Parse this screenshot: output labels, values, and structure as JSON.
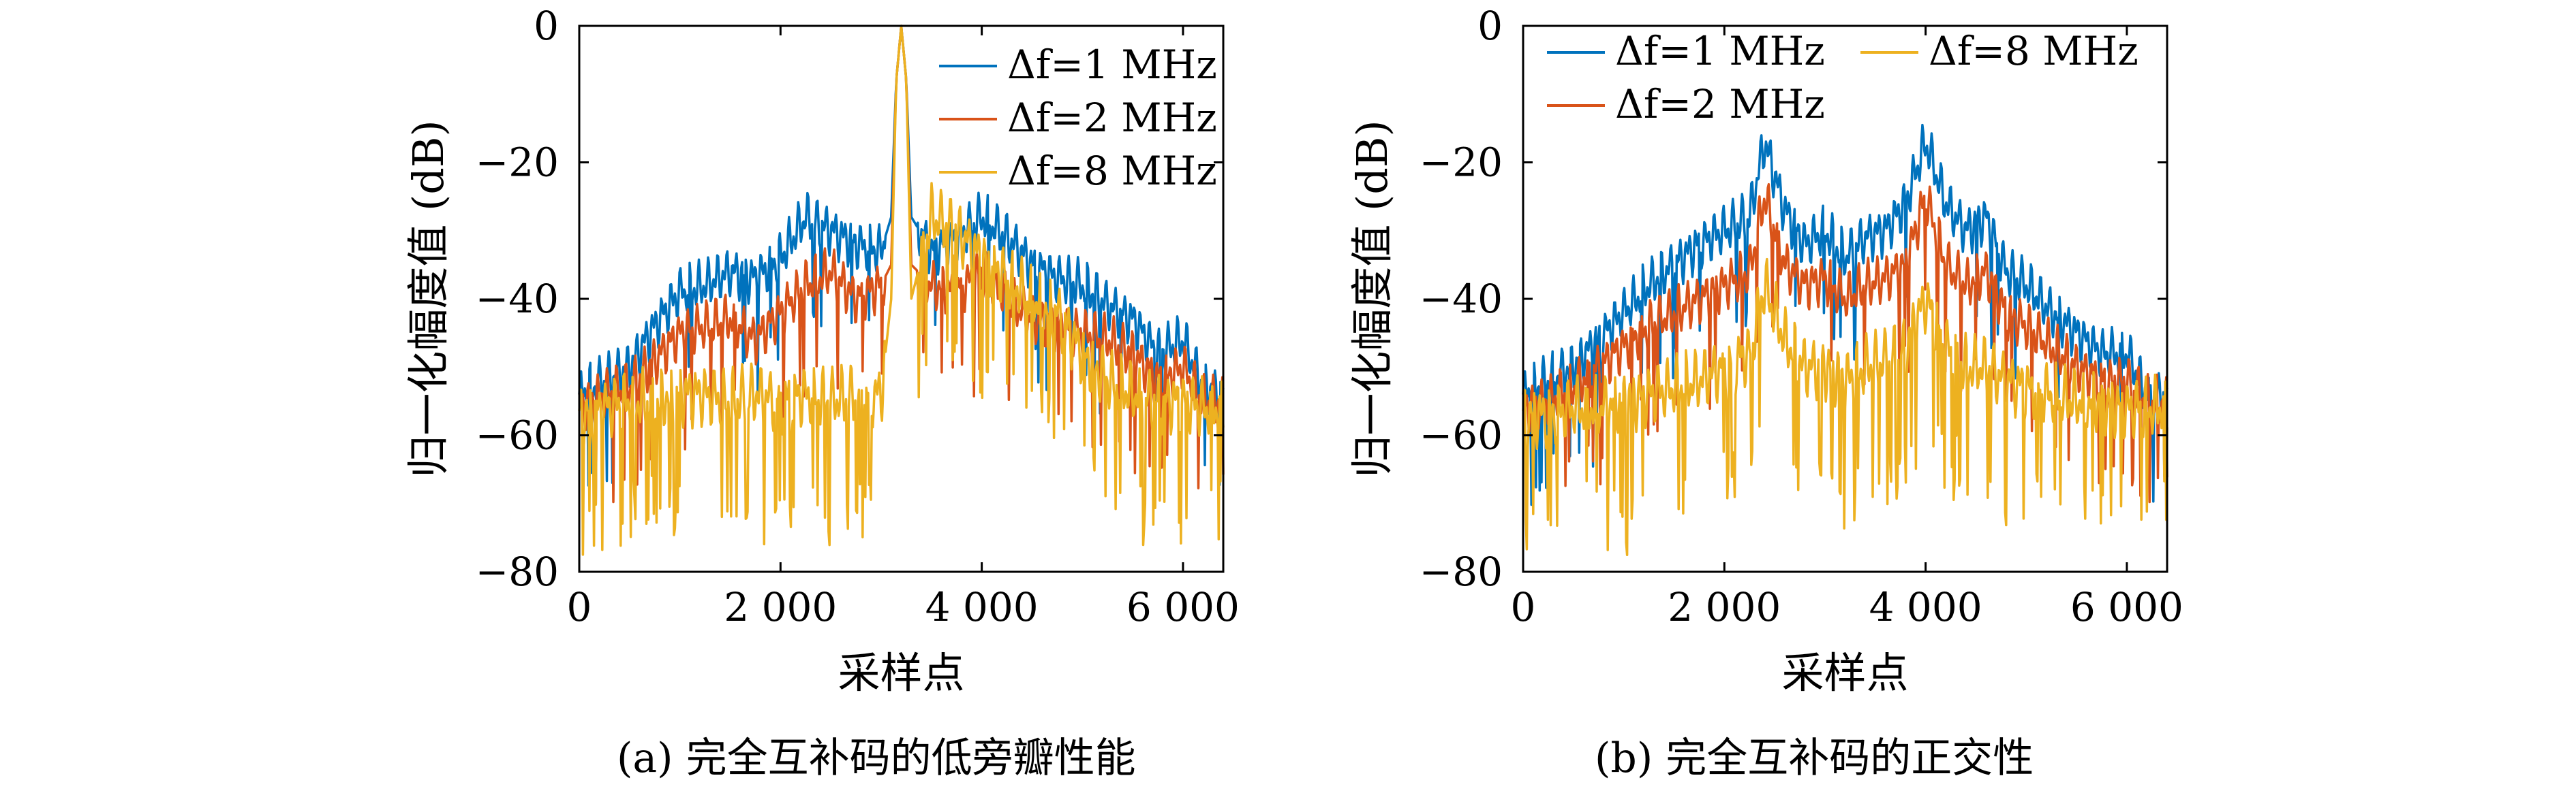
{
  "colors": {
    "blue": "#0072BD",
    "red": "#D95319",
    "yellow": "#EDB120",
    "axis": "#000000"
  },
  "panels": [
    {
      "caption": "(a) 完全互补码的低旁瓣性能"
    },
    {
      "caption": "(b) 完全互补码的正交性"
    }
  ],
  "chart_data": [
    {
      "type": "line",
      "title": "",
      "xlabel": "采样点",
      "ylabel": "归一化幅度值 (dB)",
      "xlim": [
        0,
        6400
      ],
      "ylim": [
        -80,
        0
      ],
      "xticks": [
        0,
        2000,
        4000,
        6000
      ],
      "xtick_labels": [
        "0",
        "2 000",
        "4 000",
        "6 000"
      ],
      "yticks": [
        0,
        -20,
        -40,
        -60,
        -80
      ],
      "ytick_labels": [
        "0",
        "-20",
        "-40",
        "-60",
        "-80"
      ],
      "grid": false,
      "legend": {
        "placement": "top-right",
        "columns": 1
      },
      "series": [
        {
          "name": "Δf=1 MHz",
          "color": "blue",
          "x": [
            0,
            250,
            500,
            750,
            1000,
            1250,
            1500,
            1750,
            2000,
            2250,
            2500,
            2750,
            3000,
            3100,
            3150,
            3200,
            3250,
            3300,
            3500,
            3750,
            4000,
            4250,
            4500,
            4750,
            5000,
            5250,
            5500,
            5750,
            6000,
            6200,
            6400
          ],
          "y": [
            -54,
            -52,
            -50,
            -44,
            -39,
            -38,
            -36,
            -37,
            -34,
            -28,
            -30,
            -32,
            -33,
            -28,
            -8,
            0,
            -8,
            -28,
            -33,
            -31,
            -28,
            -31,
            -35,
            -37,
            -38,
            -41,
            -43,
            -48,
            -46,
            -53,
            -54
          ]
        },
        {
          "name": "Δf=2 MHz",
          "color": "red",
          "x": [
            0,
            250,
            500,
            750,
            1000,
            1250,
            1500,
            1750,
            2000,
            2250,
            2500,
            2750,
            3000,
            3100,
            3150,
            3200,
            3250,
            3300,
            3500,
            3750,
            4000,
            4250,
            4500,
            4750,
            5000,
            5250,
            5500,
            5750,
            6000,
            6200,
            6400
          ],
          "y": [
            -56,
            -54,
            -53,
            -49,
            -45,
            -44,
            -43,
            -46,
            -42,
            -38,
            -36,
            -40,
            -38,
            -35,
            -8,
            0,
            -8,
            -35,
            -38,
            -39,
            -36,
            -40,
            -43,
            -44,
            -45,
            -46,
            -48,
            -52,
            -50,
            -55,
            -55
          ]
        },
        {
          "name": "Δf=8 MHz",
          "color": "yellow",
          "x": [
            0,
            250,
            500,
            750,
            1000,
            1250,
            1500,
            1750,
            2000,
            2250,
            2500,
            2750,
            3000,
            3100,
            3150,
            3200,
            3250,
            3300,
            3500,
            3750,
            4000,
            4250,
            4500,
            4750,
            5000,
            5250,
            5500,
            5750,
            6000,
            6200,
            6400
          ],
          "y": [
            -57,
            -56,
            -55,
            -55,
            -54,
            -54,
            -55,
            -54,
            -55,
            -54,
            -55,
            -54,
            -54,
            -40,
            -8,
            0,
            -8,
            -40,
            -28,
            -30,
            -34,
            -37,
            -40,
            -42,
            -48,
            -52,
            -54,
            -55,
            -55,
            -56,
            -56
          ]
        }
      ]
    },
    {
      "type": "line",
      "title": "",
      "xlabel": "采样点",
      "ylabel": "归一化幅度值 (dB)",
      "xlim": [
        0,
        6400
      ],
      "ylim": [
        -80,
        0
      ],
      "xticks": [
        0,
        2000,
        4000,
        6000
      ],
      "xtick_labels": [
        "0",
        "2 000",
        "4 000",
        "6 000"
      ],
      "yticks": [
        0,
        -20,
        -40,
        -60,
        -80
      ],
      "ytick_labels": [
        "0",
        "-20",
        "-40",
        "-60",
        "-80"
      ],
      "grid": false,
      "legend": {
        "placement": "top",
        "columns": 2
      },
      "series": [
        {
          "name": "Δf=1 MHz",
          "color": "blue",
          "x": [
            0,
            250,
            500,
            750,
            1000,
            1250,
            1500,
            1750,
            2000,
            2250,
            2400,
            2600,
            2800,
            3000,
            3200,
            3400,
            3600,
            3800,
            4000,
            4200,
            4400,
            4600,
            4800,
            5000,
            5250,
            5500,
            5750,
            6000,
            6200,
            6400
          ],
          "y": [
            -54,
            -52,
            -50,
            -46,
            -42,
            -38,
            -35,
            -32,
            -30,
            -28,
            -17,
            -27,
            -32,
            -30,
            -34,
            -31,
            -30,
            -26,
            -17,
            -26,
            -30,
            -28,
            -36,
            -38,
            -42,
            -45,
            -48,
            -48,
            -54,
            -54
          ]
        },
        {
          "name": "Δf=2 MHz",
          "color": "red",
          "x": [
            0,
            250,
            500,
            750,
            1000,
            1250,
            1500,
            1750,
            2000,
            2250,
            2400,
            2600,
            2800,
            3000,
            3200,
            3400,
            3600,
            3800,
            4000,
            4200,
            4400,
            4600,
            4800,
            5000,
            5250,
            5500,
            5750,
            6000,
            6200,
            6400
          ],
          "y": [
            -56,
            -55,
            -53,
            -50,
            -47,
            -44,
            -42,
            -40,
            -38,
            -36,
            -25,
            -35,
            -38,
            -37,
            -40,
            -38,
            -37,
            -35,
            -25,
            -35,
            -38,
            -36,
            -42,
            -44,
            -47,
            -50,
            -52,
            -52,
            -55,
            -55
          ]
        },
        {
          "name": "Δf=8 MHz",
          "color": "yellow",
          "x": [
            0,
            250,
            500,
            750,
            1000,
            1250,
            1500,
            1750,
            2000,
            2250,
            2400,
            2600,
            2800,
            3000,
            3200,
            3400,
            3600,
            3800,
            4000,
            4200,
            4400,
            4600,
            4800,
            5000,
            5250,
            5500,
            5750,
            6000,
            6200,
            6400
          ],
          "y": [
            -57,
            -57,
            -56,
            -56,
            -55,
            -54,
            -53,
            -52,
            -50,
            -48,
            -38,
            -46,
            -50,
            -50,
            -52,
            -50,
            -49,
            -47,
            -40,
            -47,
            -50,
            -50,
            -52,
            -53,
            -54,
            -55,
            -55,
            -56,
            -56,
            -56
          ]
        }
      ]
    }
  ]
}
